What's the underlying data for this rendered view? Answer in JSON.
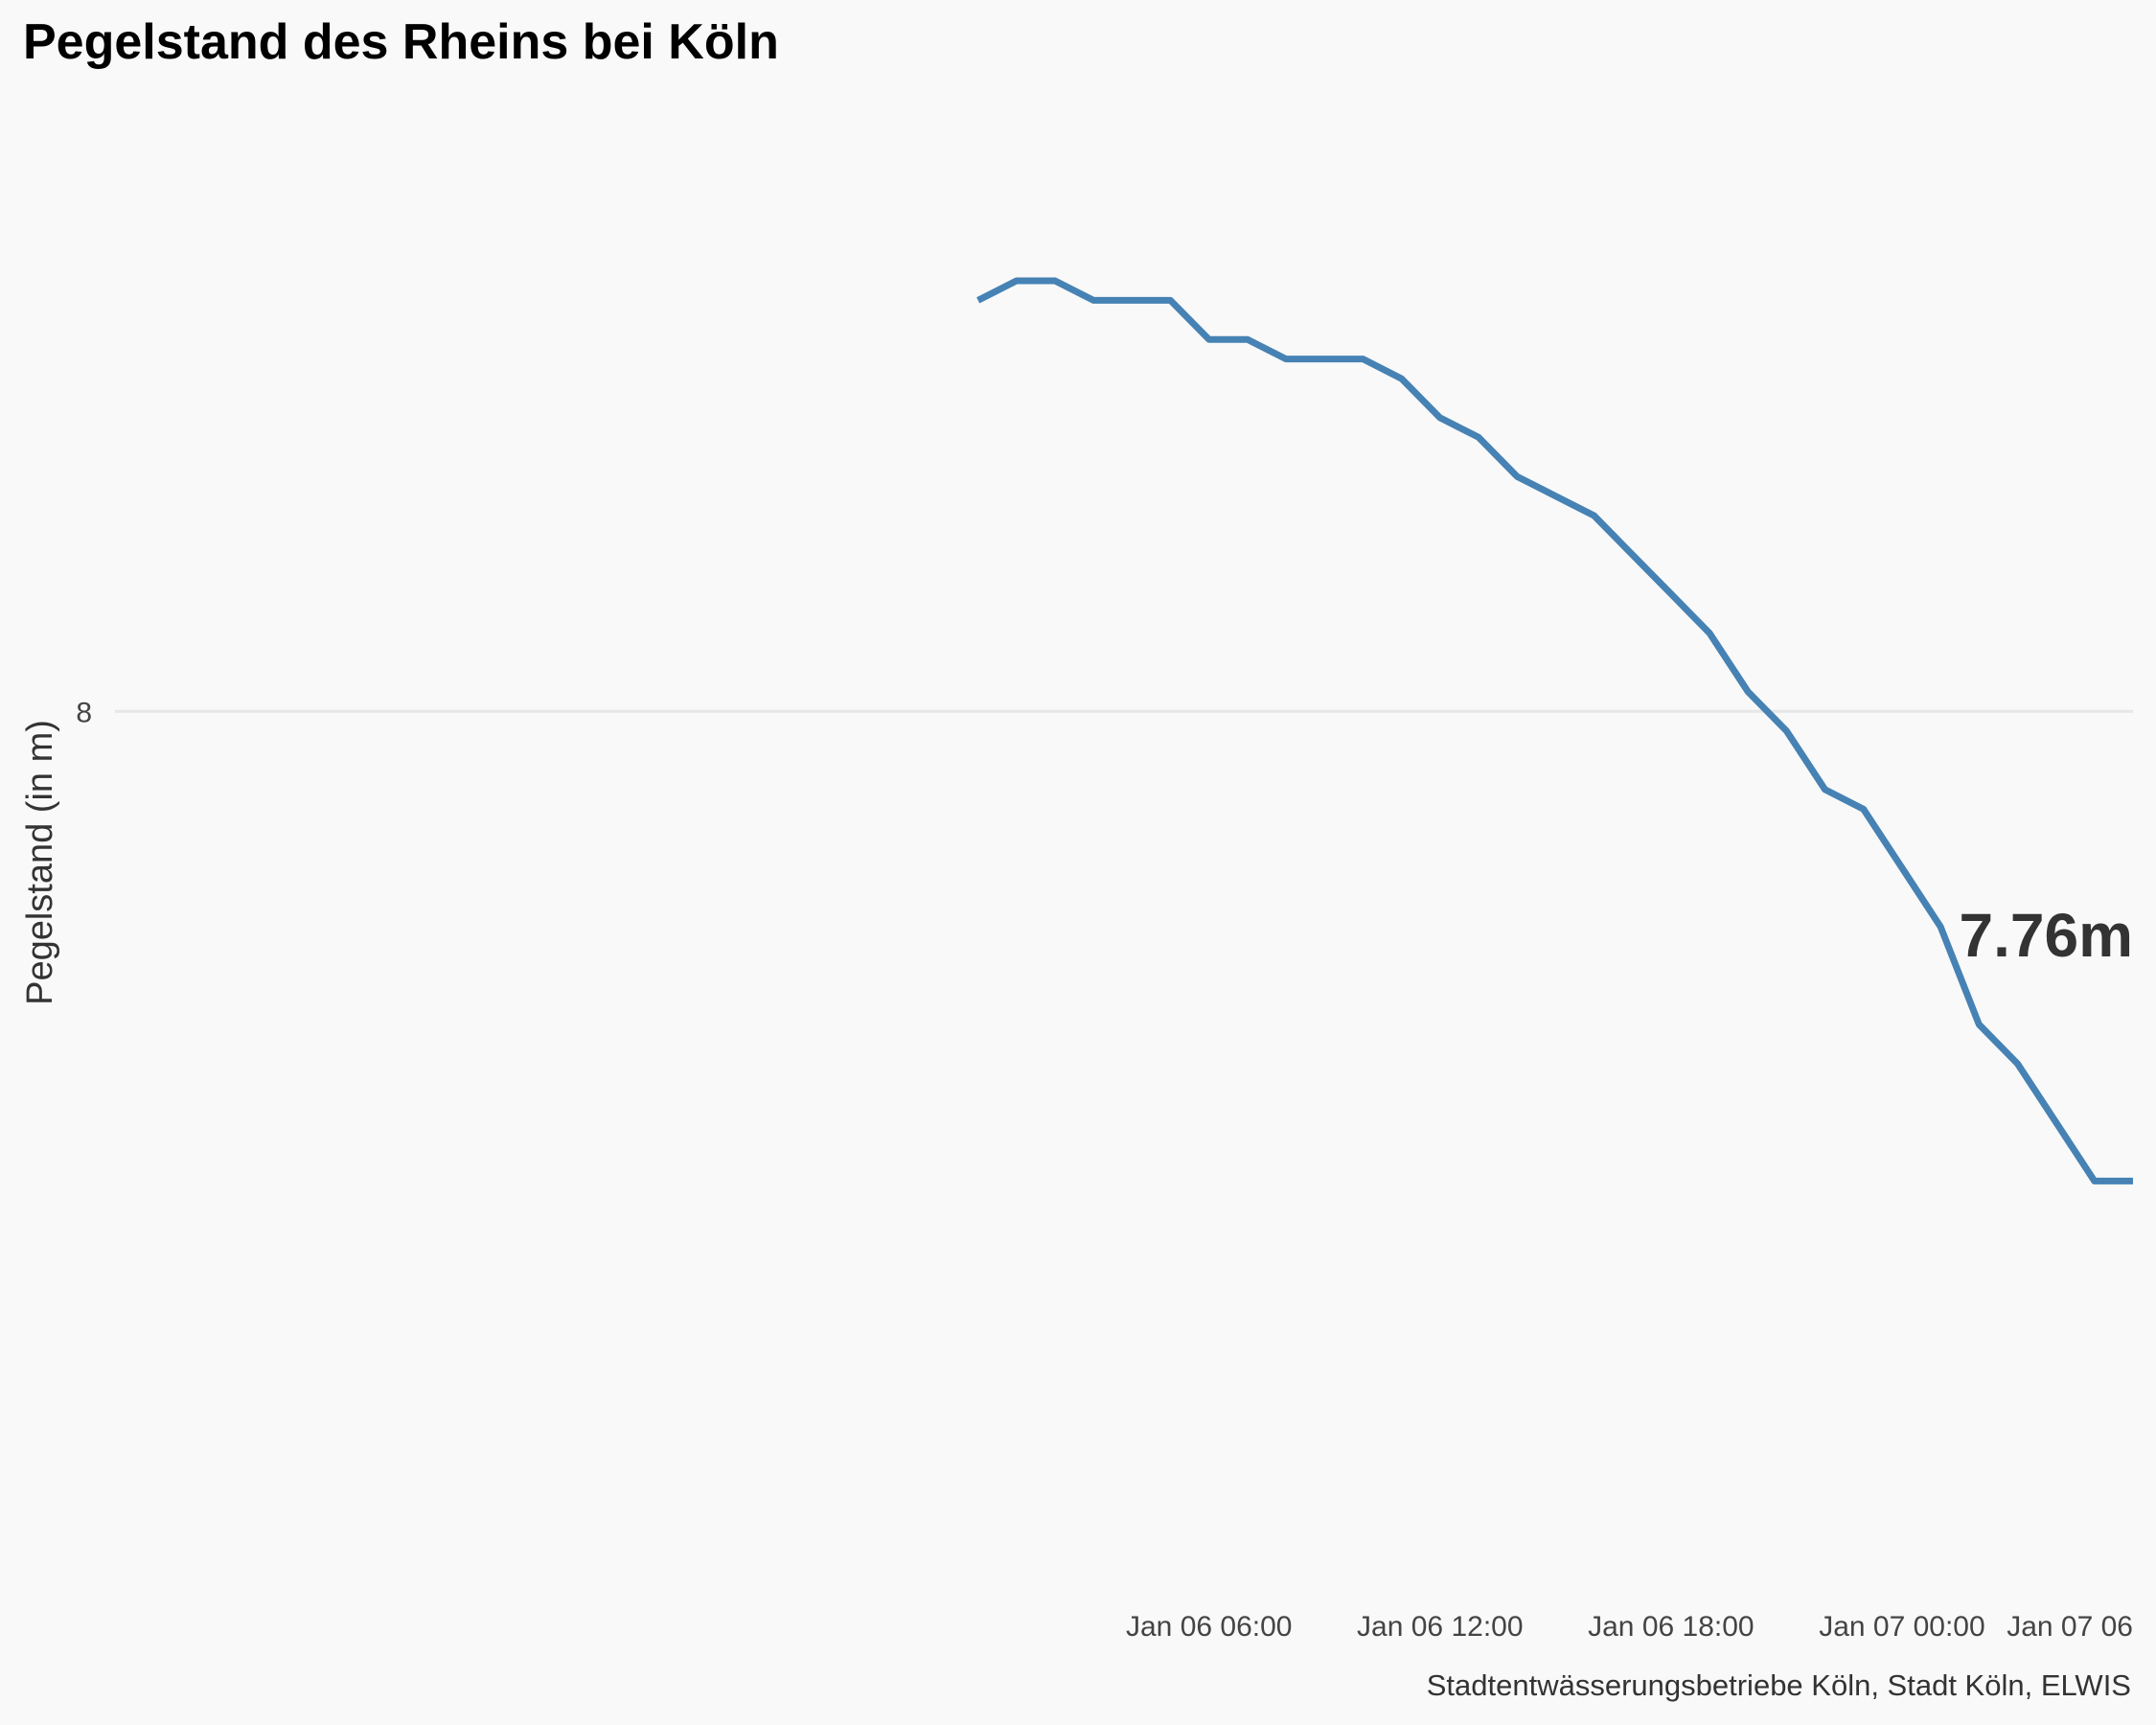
{
  "title": "Pegelstand des Rheins bei Köln",
  "caption": "Stadtentwässerungsbetriebe Köln, Stadt Köln, ELWIS",
  "colors": {
    "background": "#f9f9f9",
    "line": "#4682b4",
    "grid": "#e6e6e6"
  },
  "chart_data": {
    "type": "line",
    "title": "Pegelstand des Rheins bei Köln",
    "xlabel": "",
    "ylabel": "Pegelstand (in m)",
    "x_tick_labels": [
      "Jan 06 06:00",
      "Jan 06 12:00",
      "Jan 06 18:00",
      "Jan 07 00:00",
      "Jan 07 06"
    ],
    "y_tick_labels": [
      "8"
    ],
    "y_ticks": [
      8.0
    ],
    "xlim": [
      "2023-01-05 01:35",
      "2023-01-07 06:00"
    ],
    "ylim": [
      7.58,
      8.29
    ],
    "grid": true,
    "legend": "none",
    "annotation": "7.76m",
    "series": [
      {
        "x": [
          "2023-01-06 00:00",
          "2023-01-06 01:00",
          "2023-01-06 02:00",
          "2023-01-06 03:00",
          "2023-01-06 04:00",
          "2023-01-06 05:00",
          "2023-01-06 06:00",
          "2023-01-06 07:00",
          "2023-01-06 08:00",
          "2023-01-06 09:00",
          "2023-01-06 10:00",
          "2023-01-06 11:00",
          "2023-01-06 12:00",
          "2023-01-06 13:00",
          "2023-01-06 14:00",
          "2023-01-06 15:00",
          "2023-01-06 16:00",
          "2023-01-06 17:00",
          "2023-01-06 18:00",
          "2023-01-06 19:00",
          "2023-01-06 20:00",
          "2023-01-06 21:00",
          "2023-01-06 22:00",
          "2023-01-06 23:00",
          "2023-01-07 00:00",
          "2023-01-07 01:00",
          "2023-01-07 02:00",
          "2023-01-07 03:00",
          "2023-01-07 04:00",
          "2023-01-07 05:00",
          "2023-01-07 06:00"
        ],
        "values": [
          8.21,
          8.22,
          8.22,
          8.21,
          8.21,
          8.21,
          8.19,
          8.19,
          8.18,
          8.18,
          8.18,
          8.17,
          8.15,
          8.14,
          8.12,
          8.11,
          8.1,
          8.08,
          8.06,
          8.04,
          8.01,
          7.99,
          7.96,
          7.95,
          7.92,
          7.89,
          7.84,
          7.82,
          7.79,
          7.76,
          7.76
        ]
      }
    ]
  }
}
